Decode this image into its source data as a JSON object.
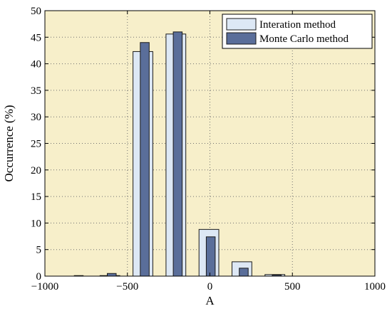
{
  "chart_data": {
    "type": "bar",
    "title": "",
    "xlabel": "A",
    "ylabel": "Occurrence (%)",
    "xlim": [
      -1000,
      1000
    ],
    "ylim": [
      0,
      50
    ],
    "xticks": [
      -1000,
      -500,
      0,
      500,
      1000
    ],
    "yticks": [
      0,
      5,
      10,
      15,
      20,
      25,
      30,
      35,
      40,
      45,
      50
    ],
    "x_tick_labels": [
      "−1000",
      "−500",
      "0",
      "500",
      "1000"
    ],
    "y_tick_labels": [
      "0",
      "5",
      "10",
      "15",
      "20",
      "25",
      "30",
      "35",
      "40",
      "45",
      "50"
    ],
    "grid": true,
    "legend_position": "top-right",
    "x": [
      -800,
      -600,
      -400,
      -200,
      0,
      200,
      400,
      600,
      800
    ],
    "series": [
      {
        "name": "Interation method",
        "values": [
          0.0,
          0.1,
          42.3,
          45.6,
          8.8,
          2.7,
          0.3,
          0.0,
          0.0
        ],
        "fill": "#dde8f5",
        "stroke": "#1a1a1a"
      },
      {
        "name": "Monte Carlo method",
        "values": [
          0.1,
          0.5,
          44.0,
          46.0,
          7.4,
          1.5,
          0.2,
          0.0,
          0.0
        ],
        "fill": "#5a6e9a",
        "stroke": "#1a1a1a"
      }
    ],
    "colors": {
      "plot_background": "#f7efca",
      "grid": "#707070",
      "axes": "#000000"
    }
  }
}
